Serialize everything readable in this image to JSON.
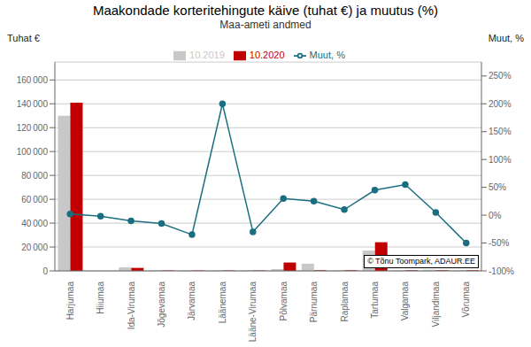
{
  "chart_data": {
    "type": "bar",
    "title": "Maakondade korteritehingute käive (tuhat €) ja muutus (%)",
    "subtitle": "Maa-ameti andmed",
    "ylabel": "Tuhat €",
    "y2label": "Muut, %",
    "categories": [
      "Harjumaa",
      "Hiiumaa",
      "Ida-Virumaa",
      "Jõgevamaa",
      "Järvamaa",
      "Läänemaa",
      "Lääne-Virumaa",
      "Põlvamaa",
      "Pärnumaa",
      "Raplamaa",
      "Tartumaa",
      "Valgamaa",
      "Viljandimaa",
      "Võrumaa"
    ],
    "series": [
      {
        "name": "10.2019",
        "color": "#c8c8c8",
        "values": [
          130000,
          0,
          3000,
          500,
          500,
          500,
          500,
          1500,
          6000,
          500,
          17000,
          500,
          1000,
          500
        ]
      },
      {
        "name": "10.2020",
        "color": "#c00000",
        "values": [
          141000,
          0,
          2500,
          300,
          300,
          300,
          300,
          7000,
          500,
          500,
          24000,
          500,
          500,
          500
        ]
      },
      {
        "name": "Muut, %",
        "color": "#1a6e80",
        "type": "line",
        "axis": "y2",
        "marker": "circle",
        "values": [
          2,
          -2,
          -10,
          -15,
          -35,
          200,
          -30,
          30,
          25,
          10,
          45,
          55,
          5,
          -50
        ]
      }
    ],
    "ylim": [
      0,
      175000
    ],
    "yticks": [
      0,
      {
        "value": 20000,
        "label": "20 000"
      },
      {
        "value": 40000,
        "label": "40 000"
      },
      {
        "value": 60000,
        "label": "60 000"
      },
      {
        "value": 80000,
        "label": "80 000"
      },
      {
        "value": 100000,
        "label": "100 000"
      },
      {
        "value": 120000,
        "label": "120 000"
      },
      {
        "value": 140000,
        "label": "140 000"
      },
      {
        "value": 160000,
        "label": "160 000"
      }
    ],
    "y2lim": [
      -100,
      275
    ],
    "y2ticks": [
      {
        "value": -100,
        "label": "-100%"
      },
      {
        "value": -50,
        "label": "-50%"
      },
      {
        "value": 0,
        "label": "0%"
      },
      {
        "value": 50,
        "label": "50%"
      },
      {
        "value": 100,
        "label": "100%"
      },
      {
        "value": 150,
        "label": "150%"
      },
      {
        "value": 200,
        "label": "200%"
      },
      {
        "value": 250,
        "label": "250%"
      }
    ],
    "grid": true,
    "legend": "top",
    "annotations": [
      "© Tõnu Toompark, ADAUR.EE"
    ]
  }
}
